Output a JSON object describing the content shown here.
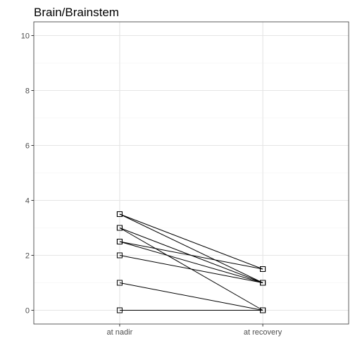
{
  "chart_data": {
    "type": "line",
    "title": "Brain/Brainstem",
    "xlabel": "",
    "ylabel": "",
    "categories": [
      "at nadir",
      "at recovery"
    ],
    "ylim": [
      -0.5,
      10.5
    ],
    "yticks": [
      0,
      2,
      4,
      6,
      8,
      10
    ],
    "grid": true,
    "marker": "open-square",
    "series": [
      {
        "values": [
          3.5,
          1.5
        ]
      },
      {
        "values": [
          3.5,
          1.0
        ]
      },
      {
        "values": [
          3.0,
          1.0
        ]
      },
      {
        "values": [
          3.0,
          0.0
        ]
      },
      {
        "values": [
          2.5,
          1.5
        ]
      },
      {
        "values": [
          2.5,
          1.0
        ]
      },
      {
        "values": [
          2.0,
          1.0
        ]
      },
      {
        "values": [
          1.0,
          0.0
        ]
      },
      {
        "values": [
          0.0,
          0.0
        ]
      }
    ]
  },
  "colors": {
    "panel_border": "#333333",
    "grid_major": "#e5e5e5",
    "grid_minor": "#f2f2f2",
    "line": "#000000",
    "tick_text": "#4d4d4d"
  }
}
